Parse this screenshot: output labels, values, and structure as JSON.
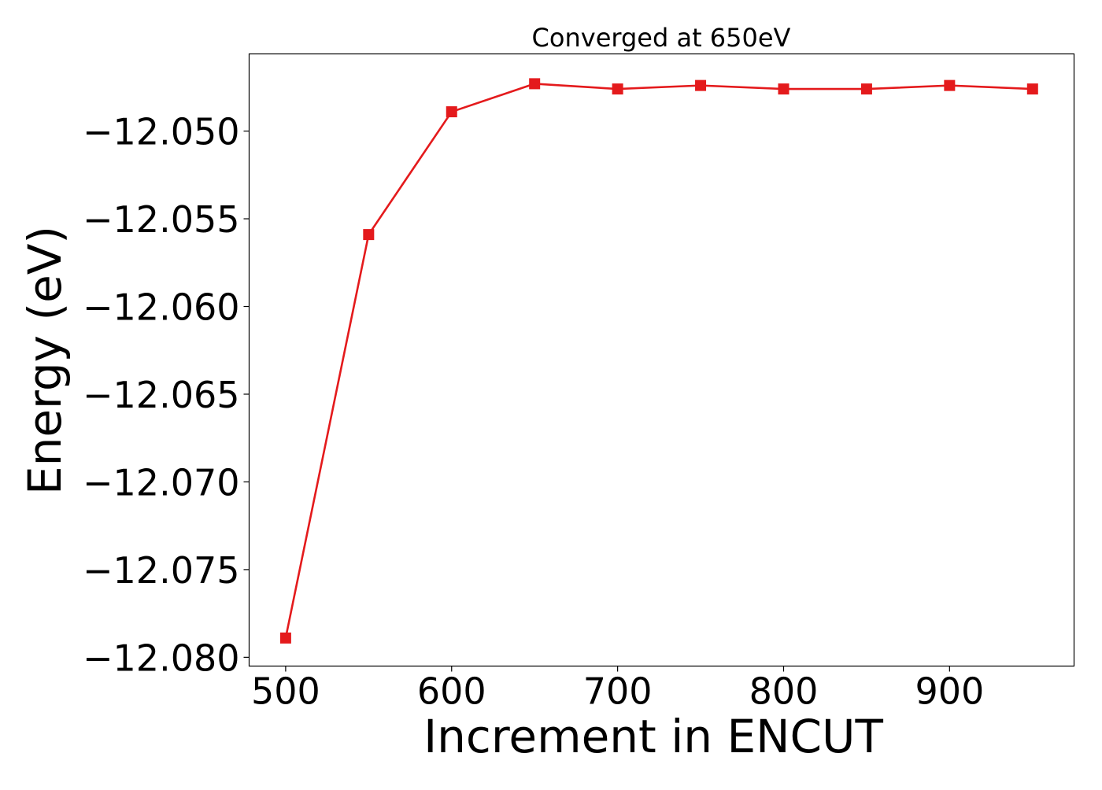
{
  "chart_data": {
    "type": "line",
    "title": "Converged at 650eV",
    "xlabel": "Increment in ENCUT",
    "ylabel": "Energy (eV)",
    "x_ticks": [
      500,
      600,
      700,
      800,
      900
    ],
    "x_tick_labels": [
      "500",
      "600",
      "700",
      "800",
      "900"
    ],
    "y_ticks": [
      -12.05,
      -12.055,
      -12.06,
      -12.065,
      -12.07,
      -12.075,
      -12.08
    ],
    "y_tick_labels": [
      "−12.050",
      "−12.055",
      "−12.060",
      "−12.065",
      "−12.070",
      "−12.075",
      "−12.080"
    ],
    "xlim": [
      478,
      975
    ],
    "ylim": [
      -12.0805,
      -12.0456
    ],
    "grid": false,
    "series": [
      {
        "color": "#e41a1c",
        "marker": "square",
        "x": [
          500,
          550,
          600,
          650,
          700,
          750,
          800,
          850,
          900,
          950
        ],
        "y": [
          -12.0789,
          -12.0559,
          -12.0489,
          -12.0473,
          -12.0476,
          -12.0474,
          -12.0476,
          -12.0476,
          -12.0474,
          -12.0476
        ]
      }
    ]
  }
}
